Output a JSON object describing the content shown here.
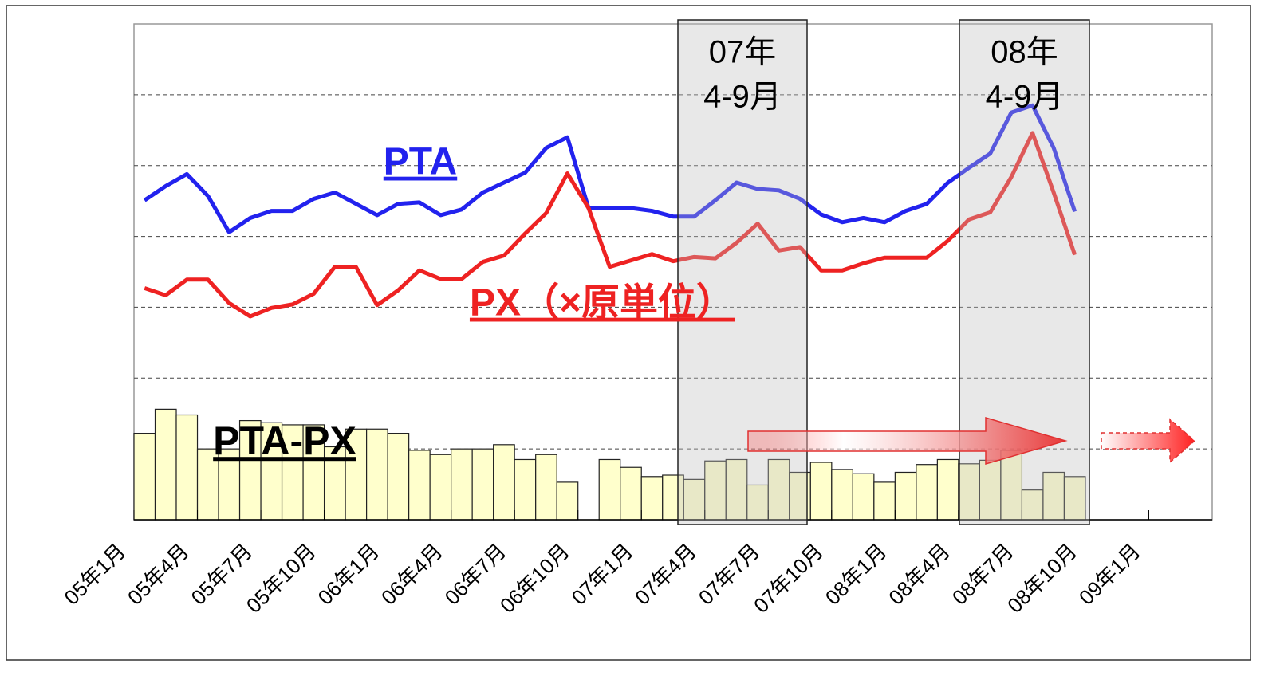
{
  "chart_data": {
    "type": "combo",
    "categories": [
      "05年1月",
      null,
      null,
      "05年4月",
      null,
      null,
      "05年7月",
      null,
      null,
      "05年10月",
      null,
      null,
      "06年1月",
      null,
      null,
      "06年4月",
      null,
      null,
      "06年7月",
      null,
      null,
      "06年10月",
      null,
      null,
      "07年1月",
      null,
      null,
      "07年4月",
      null,
      null,
      "07年7月",
      null,
      null,
      "07年10月",
      null,
      null,
      "08年1月",
      null,
      null,
      "08年4月",
      null,
      null,
      "08年7月",
      null,
      null,
      "08年10月",
      null,
      null,
      "09年1月",
      null,
      null
    ],
    "series": [
      {
        "name": "PTA",
        "type": "line",
        "color": "#2222ee",
        "values": [
          4.51,
          4.71,
          4.88,
          4.57,
          4.06,
          4.26,
          4.36,
          4.36,
          4.53,
          4.62,
          4.46,
          4.3,
          4.46,
          4.48,
          4.3,
          4.38,
          4.62,
          4.76,
          4.9,
          5.25,
          5.4,
          4.4,
          4.4,
          4.4,
          4.36,
          4.28,
          4.28,
          4.51,
          4.76,
          4.67,
          4.65,
          4.53,
          4.31,
          4.2,
          4.26,
          4.2,
          4.36,
          4.46,
          4.76,
          4.97,
          5.17,
          5.75,
          5.85,
          5.25,
          4.35,
          null,
          null,
          null,
          null,
          null,
          null
        ]
      },
      {
        "name": "PX（×原単位）",
        "type": "line",
        "color": "#ee2222",
        "values": [
          3.27,
          3.17,
          3.39,
          3.39,
          3.06,
          2.87,
          2.99,
          3.04,
          3.19,
          3.57,
          3.57,
          3.03,
          3.24,
          3.52,
          3.4,
          3.4,
          3.64,
          3.73,
          4.04,
          4.33,
          4.89,
          4.4,
          3.57,
          3.66,
          3.75,
          3.65,
          3.71,
          3.69,
          3.91,
          4.18,
          3.8,
          3.85,
          3.52,
          3.52,
          3.62,
          3.7,
          3.7,
          3.7,
          3.94,
          4.24,
          4.34,
          4.84,
          5.46,
          4.62,
          3.74,
          null,
          null,
          null,
          null,
          null,
          null
        ]
      },
      {
        "name": "PTA-PX",
        "type": "bar",
        "color": "#ffffcc",
        "values": [
          1.22,
          1.56,
          1.48,
          1.0,
          1.0,
          1.4,
          1.37,
          1.34,
          1.34,
          1.03,
          1.28,
          1.28,
          1.22,
          0.98,
          0.92,
          1.0,
          1.0,
          1.06,
          0.85,
          0.92,
          0.53,
          null,
          0.85,
          0.74,
          0.61,
          0.63,
          0.57,
          0.83,
          0.85,
          0.49,
          0.85,
          0.67,
          0.81,
          0.71,
          0.65,
          0.53,
          0.67,
          0.78,
          0.85,
          0.79,
          0.84,
          0.98,
          0.42,
          0.67,
          0.61,
          null,
          null,
          null,
          null,
          null,
          null
        ]
      }
    ],
    "highlights": [
      {
        "lines": [
          "07年",
          "4-9月"
        ]
      },
      {
        "lines": [
          "08年",
          "4-9月"
        ]
      }
    ],
    "ylim": [
      0,
      7
    ],
    "yticks": [
      0,
      1,
      2,
      3,
      4,
      5,
      6,
      7
    ],
    "grid": true
  }
}
